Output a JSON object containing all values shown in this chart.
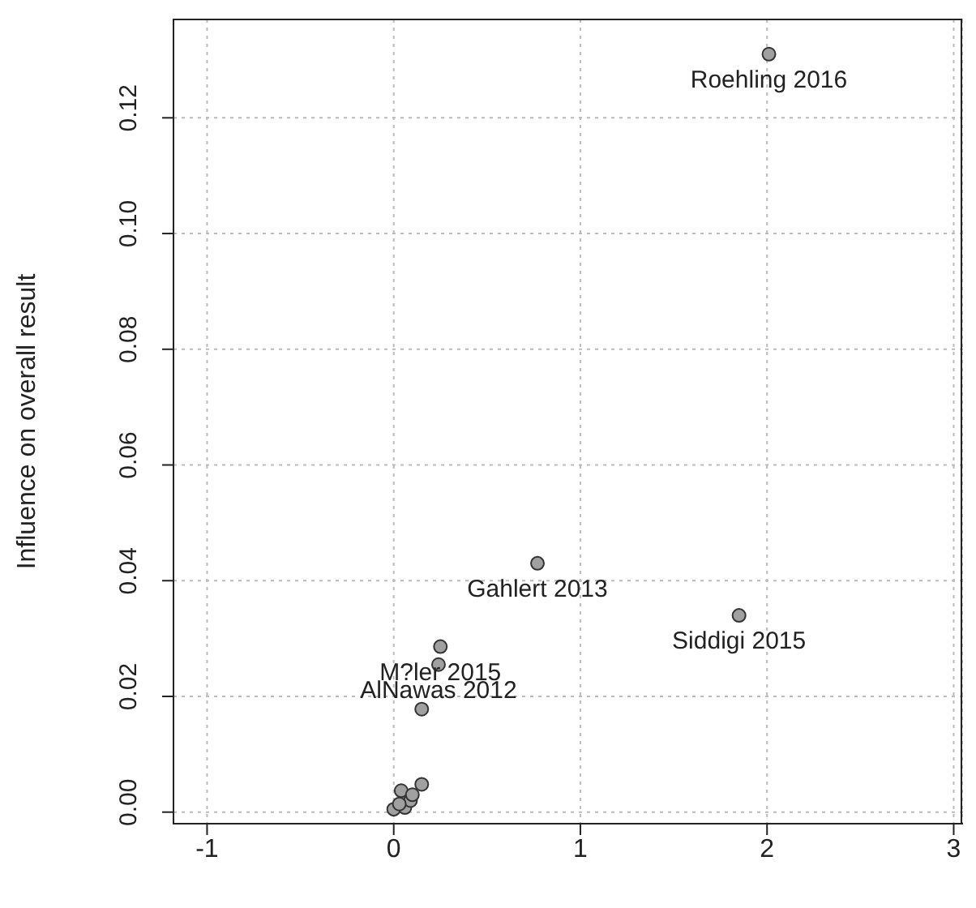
{
  "chart_data": {
    "type": "scatter",
    "ylabel": "Influence on overall result",
    "x": [
      2.01,
      0.77,
      1.85,
      0.25,
      0.24,
      0.15,
      0,
      0.04,
      0.06,
      0.09,
      0.15,
      0.1,
      0.03
    ],
    "values": [
      0.131,
      0.043,
      0.034,
      0.0286,
      0.0255,
      0.0178,
      0.0005,
      0.0037,
      0.0008,
      0.002,
      0.0048,
      0.003,
      0.0014
    ],
    "color": "#a0a0a0",
    "marker": "circle",
    "xlim": [
      -1.18,
      3.05
    ],
    "xticks": [
      -1,
      0,
      1,
      2,
      3
    ],
    "ylim": [
      -0.002,
      0.137
    ],
    "yticks": [
      {
        "value": 0,
        "label": "0.00"
      },
      0.02,
      0.04,
      0.06,
      0.08,
      {
        "value": 0.1,
        "label": "0.10"
      },
      0.12
    ],
    "grid": true,
    "annotations": [
      {
        "text": "Roehling 2016",
        "x": 2.01,
        "y": 0.131
      },
      {
        "text": "Gahlert 2013",
        "x": 0.77,
        "y": 0.043
      },
      {
        "text": "Siddigi 2015",
        "x": 1.85,
        "y": 0.034
      },
      {
        "text": "M?ler 2015",
        "x": 0.25,
        "y": 0.0286
      },
      {
        "text": "AlNawas 2012",
        "x": 0.24,
        "y": 0.0255
      }
    ]
  }
}
